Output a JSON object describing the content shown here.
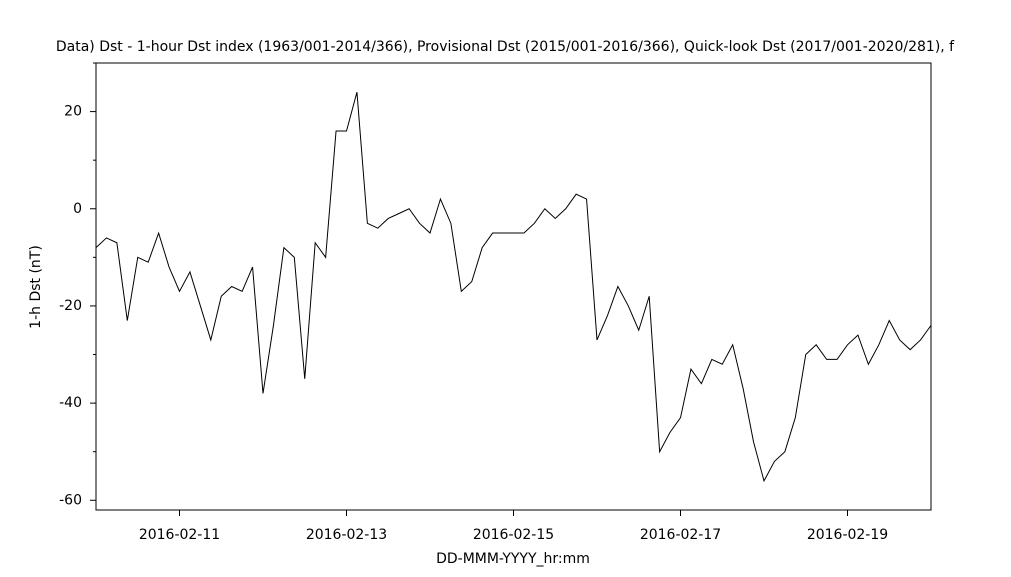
{
  "chart_data": {
    "type": "line",
    "title": "Data)  Dst - 1-hour Dst index (1963/001-2014/366), Provisional Dst (2015/001-2016/366), Quick-look Dst (2017/001-2020/281), f",
    "x_label": "DD-MMM-YYYY_hr:mm",
    "y_label": "1-h Dst (nT)",
    "categories": [
      null,
      null,
      null,
      null,
      null,
      null,
      null,
      null,
      "2016-02-11",
      null,
      null,
      null,
      null,
      null,
      null,
      null,
      null,
      null,
      null,
      null,
      null,
      null,
      null,
      null,
      "2016-02-13",
      null,
      null,
      null,
      null,
      null,
      null,
      null,
      null,
      null,
      null,
      null,
      null,
      null,
      null,
      null,
      "2016-02-15",
      null,
      null,
      null,
      null,
      null,
      null,
      null,
      null,
      null,
      null,
      null,
      null,
      null,
      null,
      null,
      "2016-02-17",
      null,
      null,
      null,
      null,
      null,
      null,
      null,
      null,
      null,
      null,
      null,
      null,
      null,
      null,
      null,
      "2016-02-19",
      null,
      null,
      null,
      null,
      null,
      null,
      null,
      null
    ],
    "values": [
      -8,
      -6,
      -7,
      -23,
      -10,
      -11,
      -5,
      -12,
      -17,
      -13,
      -20,
      -27,
      -18,
      -16,
      -17,
      -12,
      -38,
      -24,
      -8,
      -10,
      -35,
      -7,
      -10,
      16,
      16,
      24,
      -3,
      -4,
      -2,
      -1,
      0,
      -3,
      -5,
      2,
      -3,
      -17,
      -15,
      -8,
      -5,
      -5,
      -5,
      -5,
      -3,
      0,
      -2,
      0,
      3,
      2,
      -27,
      -22,
      -16,
      -20,
      -25,
      -18,
      -50,
      -46,
      -43,
      -33,
      -36,
      -31,
      -32,
      -28,
      -37,
      -48,
      -56,
      -52,
      -50,
      -43,
      -30,
      -28,
      -31,
      -31,
      -28,
      -26,
      -32,
      -28,
      -23,
      -27,
      -29,
      -27,
      -24
    ],
    "color": "#000000",
    "ylim": [
      -62,
      30
    ],
    "yticks": [
      -60,
      -40,
      -20,
      0,
      20
    ],
    "yminorticks": [
      -50,
      -30,
      -10,
      10,
      30
    ],
    "grid": false
  }
}
